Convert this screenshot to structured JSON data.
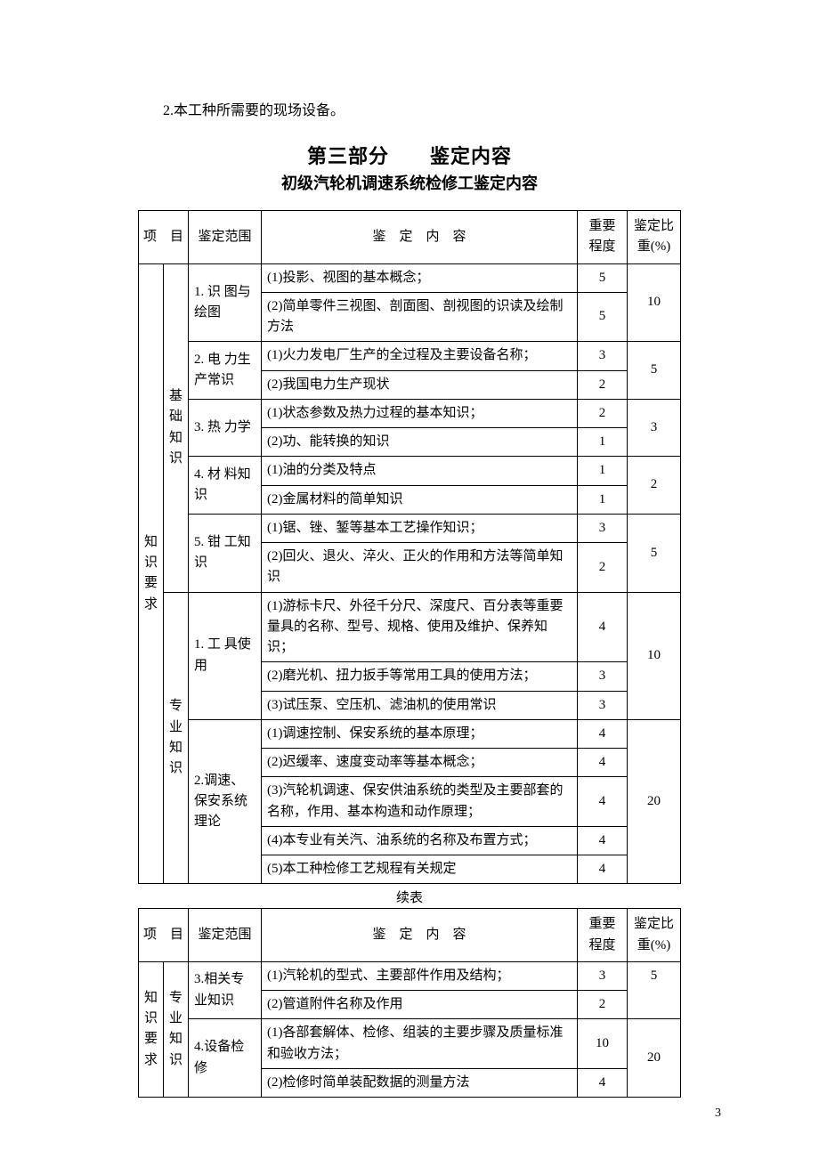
{
  "topLine": "2.本工种所需要的现场设备。",
  "titleMain": "第三部分　　鉴定内容",
  "titleSub": "初级汽轮机调速系统检修工鉴定内容",
  "header": {
    "col1": "项　目",
    "col2": "鉴定范围",
    "col3": "鉴　定　内　容",
    "col4a": "重要",
    "col4b": "程度",
    "col5a": "鉴定比",
    "col5b": "重(%)"
  },
  "groupA": {
    "l1": "知",
    "l2": "识",
    "l3": "要",
    "l4": "求"
  },
  "groupB1": {
    "l1": "基",
    "l2": "础",
    "l3": "知",
    "l4": "识"
  },
  "groupB2": {
    "l1": "专",
    "l2": "业",
    "l3": "知",
    "l4": "识"
  },
  "t1": {
    "s1": {
      "name": "1. 识 图与绘图",
      "r1": "(1)投影、视图的基本概念；",
      "r1v": "5",
      "r2": "(2)简单零件三视图、剖面图、剖视图的识读及绘制方法",
      "r2v": "5",
      "pct": "10"
    },
    "s2": {
      "name": "2. 电 力生产常识",
      "r1": "(1)火力发电厂生产的全过程及主要设备名称；",
      "r1v": "3",
      "r2": "(2)我国电力生产现状",
      "r2v": "2",
      "pct": "5"
    },
    "s3": {
      "name": "3. 热 力学",
      "r1": "(1)状态参数及热力过程的基本知识；",
      "r1v": "2",
      "r2": "(2)功、能转换的知识",
      "r2v": "1",
      "pct": "3"
    },
    "s4": {
      "name": "4. 材 料知识",
      "r1": "(1)油的分类及特点",
      "r1v": "1",
      "r2": "(2)金属材料的简单知识",
      "r2v": "1",
      "pct": "2"
    },
    "s5": {
      "name": "5. 钳 工知识",
      "r1": "(1)锯、锉、錾等基本工艺操作知识；",
      "r1v": "3",
      "r2": "(2)回火、退火、淬火、正火的作用和方法等简单知识",
      "r2v": "2",
      "pct": "5"
    },
    "s6": {
      "name": "1. 工 具使用",
      "r1": "(1)游标卡尺、外径千分尺、深度尺、百分表等重要量具的名称、型号、规格、使用及维护、保养知识；",
      "r1v": "4",
      "r2": "(2)磨光机、扭力扳手等常用工具的使用方法；",
      "r2v": "3",
      "r3": "(3)试压泵、空压机、滤油机的使用常识",
      "r3v": "3",
      "pct": "10"
    },
    "s7": {
      "name": "2.调速、保安系统理论",
      "r1": "(1)调速控制、保安系统的基本原理；",
      "r1v": "4",
      "r2": "(2)迟缓率、速度变动率等基本概念；",
      "r2v": "4",
      "r3": "(3)汽轮机调速、保安供油系统的类型及主要部套的名称，作用、基本构造和动作原理；",
      "r3v": "4",
      "r4": "(4)本专业有关汽、油系统的名称及布置方式；",
      "r4v": "4",
      "r5": "(5)本工种检修工艺规程有关规定",
      "r5v": "4",
      "pct": "20"
    }
  },
  "contLabel": "续表",
  "t2": {
    "s1": {
      "name": "3.相关专业知识",
      "r1": "(1)汽轮机的型式、主要部件作用及结构；",
      "r1v": "3",
      "r2": "(2)管道附件名称及作用",
      "r2v": "2",
      "pct": "5"
    },
    "s2": {
      "name": "4.设备检修",
      "r1": "(1)各部套解体、检修、组装的主要步骤及质量标准和验收方法；",
      "r1v": "10",
      "r2": "(2)检修时简单装配数据的测量方法",
      "r2v": "4",
      "pct": "20"
    }
  },
  "pageNum": "3"
}
